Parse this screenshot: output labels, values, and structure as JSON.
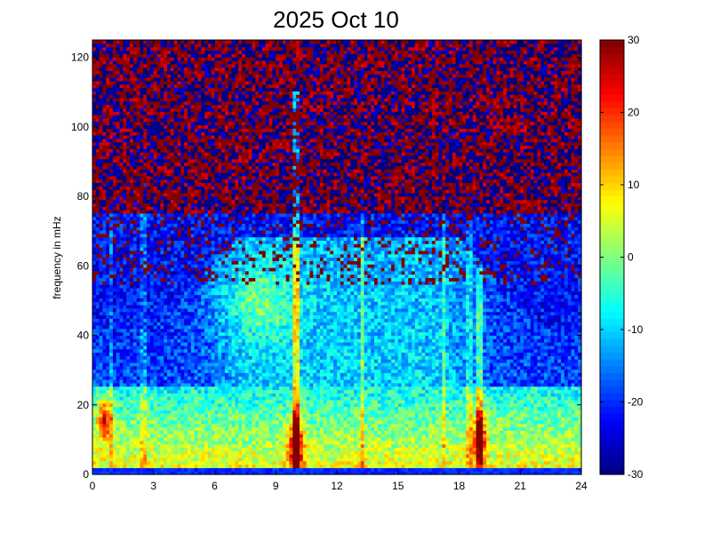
{
  "chart_data": {
    "type": "heatmap",
    "title": "2025 Oct 10",
    "xlabel": "",
    "ylabel": "frequency in mHz",
    "xlim": [
      0,
      24
    ],
    "ylim": [
      0,
      125
    ],
    "x_ticks": [
      0,
      3,
      6,
      9,
      12,
      15,
      18,
      21,
      24
    ],
    "y_ticks": [
      0,
      20,
      40,
      60,
      80,
      100,
      120
    ],
    "colorbar": {
      "colormap": "jet",
      "clim": [
        -30,
        30
      ],
      "ticks": [
        -30,
        -20,
        -10,
        0,
        10,
        20,
        30
      ]
    },
    "grid": false,
    "description_of_field": {
      "time_bins": 144,
      "freq_bins": 128,
      "features": [
        {
          "kind": "low_frequency_band",
          "freq_range_mHz": [
            0,
            25
          ],
          "level_dB": 5
        },
        {
          "kind": "broad_daytime_enhancement",
          "time_range_h": [
            6,
            19
          ],
          "freq_max_mHz": 68,
          "level_dB": -8
        },
        {
          "kind": "hot_spot",
          "time_h": 0.6,
          "freq_range_mHz": [
            12,
            20
          ],
          "level_dB": 25
        },
        {
          "kind": "hot_spot",
          "time_h": 10.0,
          "freq_range_mHz": [
            2,
            15
          ],
          "level_dB": 28
        },
        {
          "kind": "hot_spot",
          "time_h": 19.0,
          "freq_range_mHz": [
            5,
            18
          ],
          "level_dB": 25
        },
        {
          "kind": "vertical_streak",
          "time_h": 10.0,
          "freq_max_mHz": 110,
          "level_dB": -5
        },
        {
          "kind": "vertical_streak",
          "time_h": 13.3,
          "freq_max_mHz": 80,
          "level_dB": -12
        },
        {
          "kind": "vertical_streak",
          "time_h": 19.0,
          "freq_max_mHz": 60,
          "level_dB": -10
        },
        {
          "kind": "high_frequency_noise",
          "freq_min_mHz": 75,
          "level_dB": 30
        }
      ]
    }
  }
}
